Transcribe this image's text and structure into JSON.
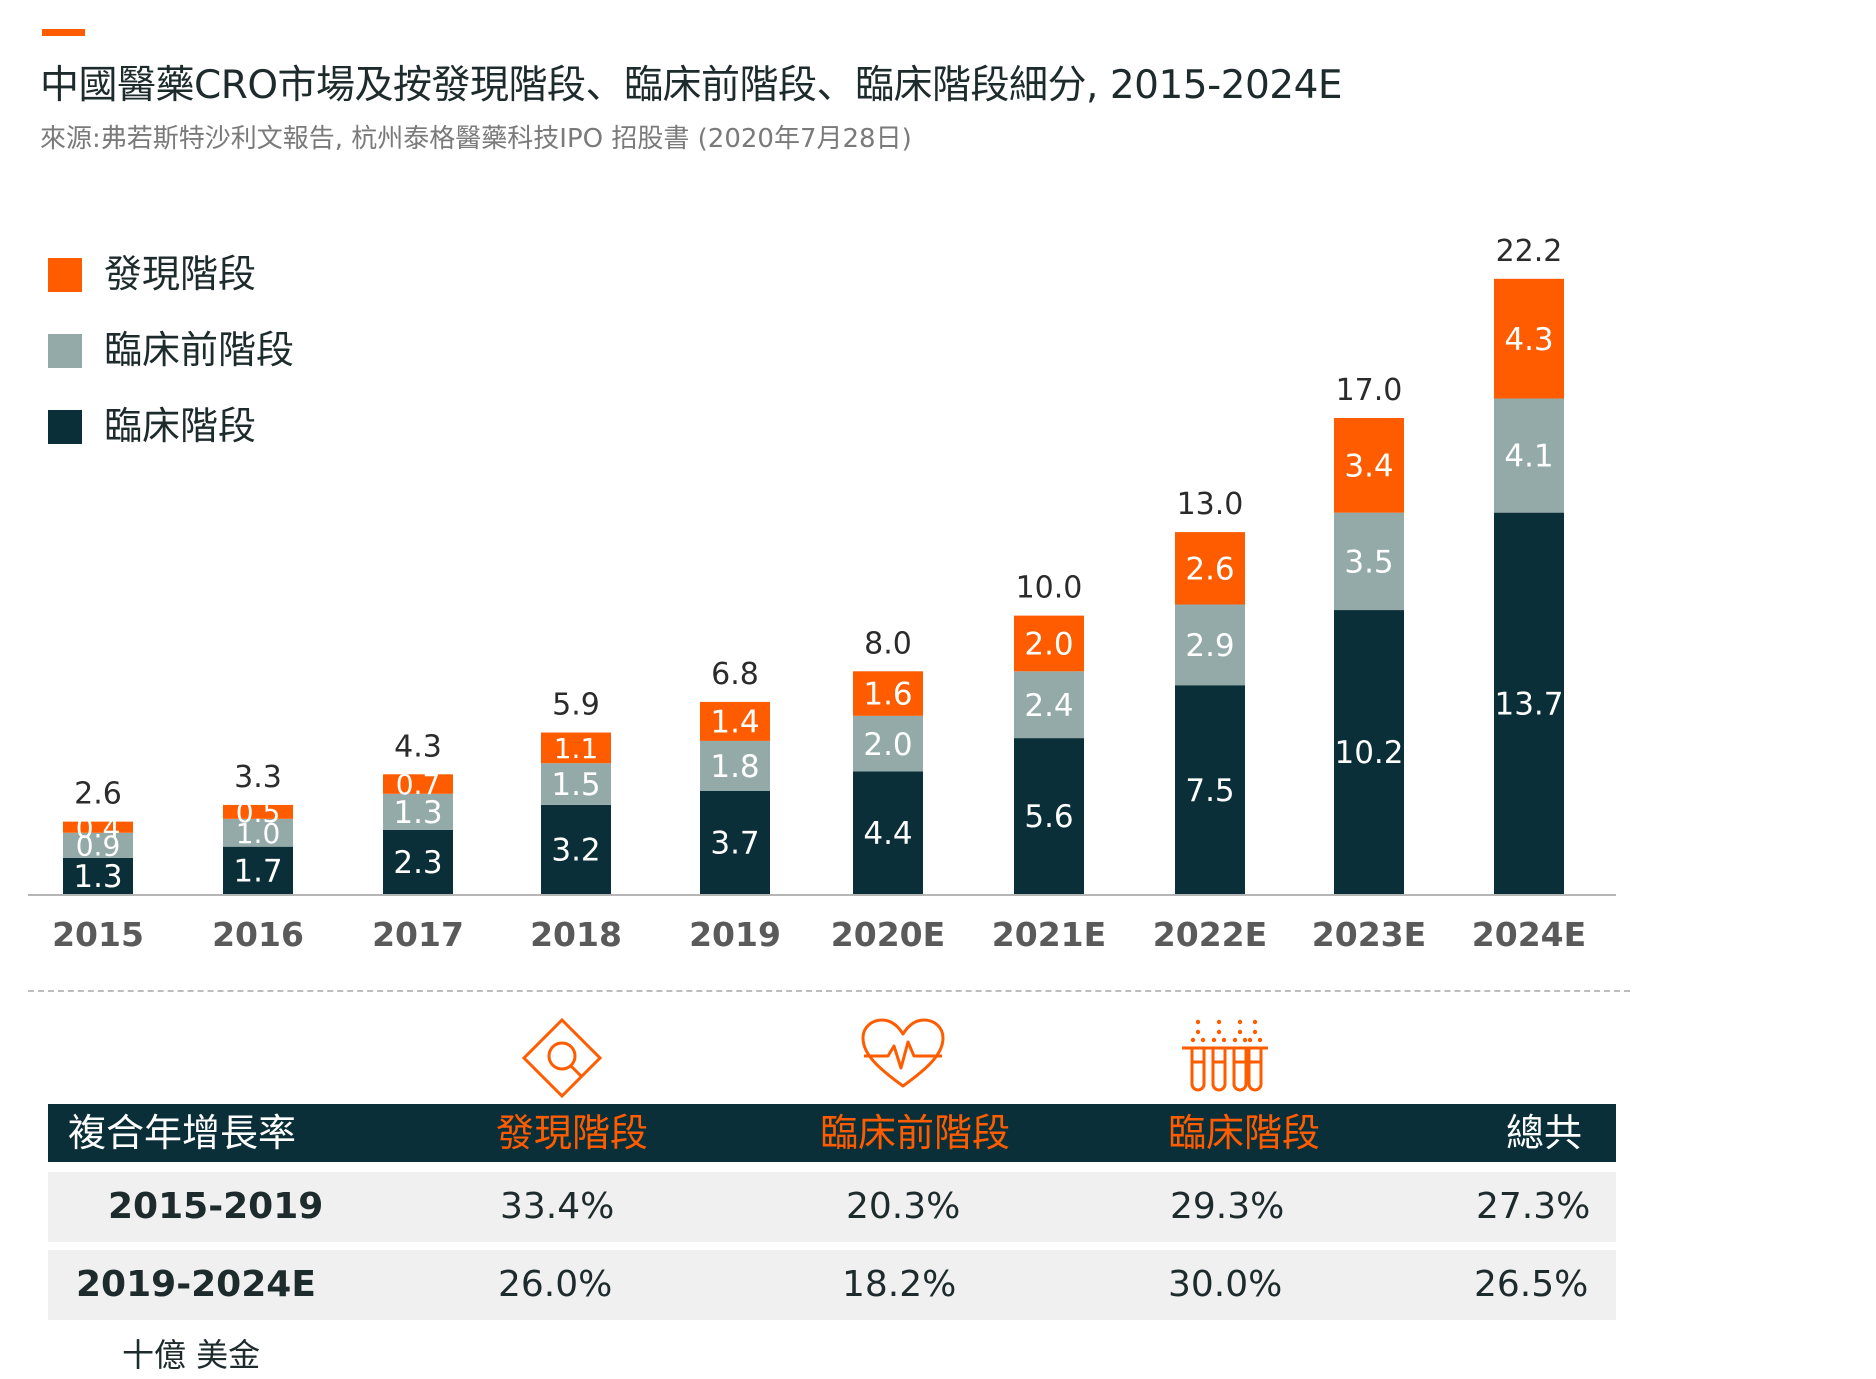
{
  "header": {
    "title": "中國醫藥CRO市場及按發現階段、臨床前階段、臨床階段細分, 2015-2024E",
    "subtitle": "來源:弗若斯特沙利文報告, 杭州泰格醫藥科技IPO 招股書 (2020年7月28日)"
  },
  "colors": {
    "discovery": "#ff5c00",
    "preclinical": "#93aaa8",
    "clinical": "#0b2f38",
    "accent": "#ff5c00"
  },
  "legend": {
    "items": [
      {
        "label": "發現階段",
        "color": "#ff5c00"
      },
      {
        "label": "臨床前階段",
        "color": "#93aaa8"
      },
      {
        "label": "臨床階段",
        "color": "#0b2f38"
      }
    ]
  },
  "chart_data": {
    "type": "bar",
    "stacked": true,
    "categories": [
      "2015",
      "2016",
      "2017",
      "2018",
      "2019",
      "2020E",
      "2021E",
      "2022E",
      "2023E",
      "2024E"
    ],
    "series": [
      {
        "name": "臨床階段",
        "color": "#0b2f38",
        "values": [
          1.3,
          1.7,
          2.3,
          3.2,
          3.7,
          4.4,
          5.6,
          7.5,
          10.2,
          13.7
        ]
      },
      {
        "name": "臨床前階段",
        "color": "#93aaa8",
        "values": [
          0.9,
          1.0,
          1.3,
          1.5,
          1.8,
          2.0,
          2.4,
          2.9,
          3.5,
          4.1
        ]
      },
      {
        "name": "發現階段",
        "color": "#ff5c00",
        "values": [
          0.4,
          0.5,
          0.7,
          1.1,
          1.4,
          1.6,
          2.0,
          2.6,
          3.4,
          4.3
        ]
      }
    ],
    "totals": [
      "2.6",
      "3.3",
      "4.3",
      "5.9",
      "6.8",
      "8.0",
      "10.0",
      "13.0",
      "17.0",
      "22.2"
    ],
    "ylim": [
      0,
      22.2
    ],
    "grid": false,
    "legend_position": "top-left",
    "unit": "十億 美金"
  },
  "icons": {
    "discovery": "magnifier-diamond-icon",
    "preclinical": "heart-pulse-icon",
    "clinical": "test-tubes-icon"
  },
  "cagr_table": {
    "header": [
      "複合年增長率",
      "發現階段",
      "臨床前階段",
      "臨床階段",
      "總共"
    ],
    "rows": [
      {
        "period": "2015-2019",
        "values": [
          "33.4%",
          "20.3%",
          "29.3%",
          "27.3%"
        ]
      },
      {
        "period": "2019-2024E",
        "values": [
          "26.0%",
          "18.2%",
          "30.0%",
          "26.5%"
        ]
      }
    ]
  }
}
